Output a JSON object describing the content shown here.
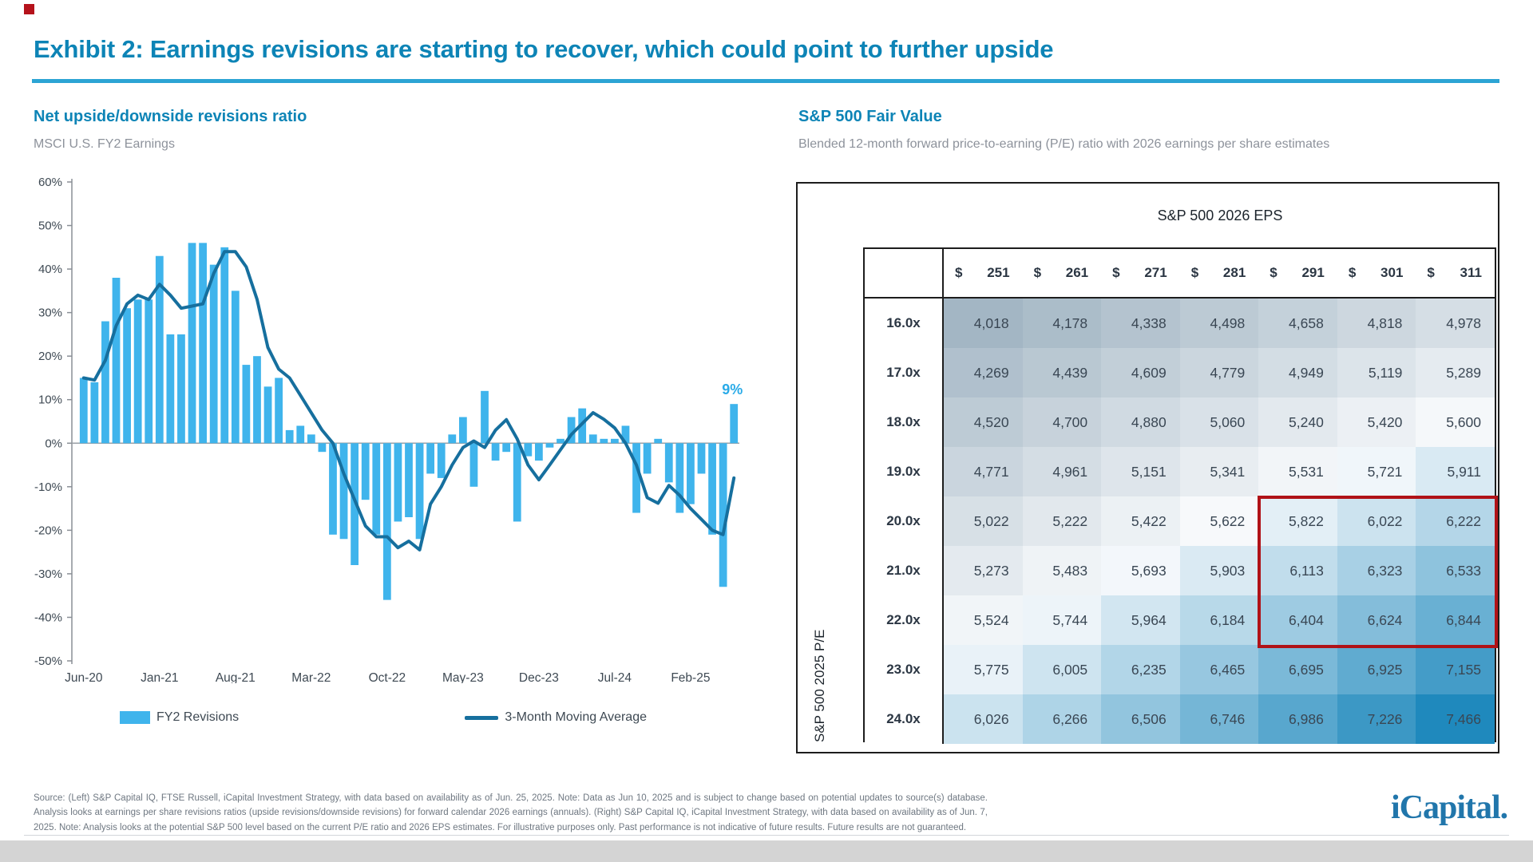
{
  "colors": {
    "title_blue": "#0d84b6",
    "rule_blue": "#2ca4d4",
    "bar_blue": "#3fb4ec",
    "ma_line_blue": "#166f9e",
    "annotation_blue": "#2aabe8",
    "axis_gray": "#8a8f96",
    "zero_line_gray": "#9aa0a6",
    "tick_text": "#3e4953",
    "subtitle_gray": "#8d929b",
    "footer_gray": "#6e7781",
    "highlight_red": "#b01217",
    "logo_blue": "#2176ab",
    "corner_mark_red": "#b5121b"
  },
  "header": {
    "exhibit_title": "Exhibit 2: Earnings revisions are starting to recover, which could point to further upside"
  },
  "left_panel": {
    "title": "Net upside/downside revisions ratio",
    "subtitle": "MSCI U.S. FY2 Earnings",
    "annotation_label": "9%",
    "legend": [
      {
        "label": "FY2 Revisions",
        "swatch": "bar"
      },
      {
        "label": "3-Month Moving Average",
        "swatch": "line"
      }
    ]
  },
  "chart_data": {
    "type": "bar",
    "title": "Net upside/downside revisions ratio",
    "subtitle": "MSCI U.S. FY2 Earnings",
    "ylim": [
      -50,
      60
    ],
    "ytick_step": 10,
    "ytick_suffix": "%",
    "grid": "zero-line-only",
    "legend_position": "bottom",
    "categories": [
      "Jun-20",
      "Jul-20",
      "Aug-20",
      "Sep-20",
      "Oct-20",
      "Nov-20",
      "Dec-20",
      "Jan-21",
      "Feb-21",
      "Mar-21",
      "Apr-21",
      "May-21",
      "Jun-21",
      "Jul-21",
      "Aug-21",
      "Sep-21",
      "Oct-21",
      "Nov-21",
      "Dec-21",
      "Jan-22",
      "Feb-22",
      "Mar-22",
      "Apr-22",
      "May-22",
      "Jun-22",
      "Jul-22",
      "Aug-22",
      "Sep-22",
      "Oct-22",
      "Nov-22",
      "Dec-22",
      "Jan-23",
      "Feb-23",
      "Mar-23",
      "Apr-23",
      "May-23",
      "Jun-23",
      "Jul-23",
      "Aug-23",
      "Sep-23",
      "Oct-23",
      "Nov-23",
      "Dec-23",
      "Jan-24",
      "Feb-24",
      "Mar-24",
      "Apr-24",
      "May-24",
      "Jun-24",
      "Jul-24",
      "Aug-24",
      "Sep-24",
      "Oct-24",
      "Nov-24",
      "Dec-24",
      "Jan-25",
      "Feb-25",
      "Mar-25",
      "Apr-25",
      "May-25",
      "Jun-25"
    ],
    "xtick_indices": [
      0,
      7,
      14,
      21,
      28,
      35,
      42,
      49,
      56
    ],
    "xtick_labels": [
      "Jun-20",
      "Jan-21",
      "Aug-21",
      "Mar-22",
      "Oct-22",
      "May-23",
      "Dec-23",
      "Jul-24",
      "Feb-25"
    ],
    "series": [
      {
        "name": "FY2 Revisions",
        "type": "bar",
        "values": [
          15,
          14,
          28,
          38,
          31,
          33,
          33,
          43,
          25,
          25,
          46,
          46,
          41,
          45,
          35,
          18,
          20,
          13,
          15,
          3,
          4,
          2,
          -2,
          -21,
          -22,
          -28,
          -13,
          -21,
          -36,
          -18,
          -17,
          -22,
          -7,
          -8,
          2,
          6,
          -10,
          12,
          -4,
          -2,
          -18,
          -3,
          -4,
          -1,
          1,
          6,
          8,
          2,
          1,
          1,
          4,
          -16,
          -7,
          1,
          -9,
          -16,
          -14,
          -7,
          -21,
          -33,
          9
        ]
      },
      {
        "name": "3-Month Moving Average",
        "type": "line",
        "values": [
          15,
          14.5,
          19,
          27,
          32,
          34,
          33,
          36.5,
          34,
          31,
          31.5,
          32,
          39,
          44,
          44,
          40.5,
          33,
          22,
          17,
          15,
          11,
          7,
          3,
          0,
          -7,
          -13,
          -19,
          -21.5,
          -21.5,
          -24,
          -22.5,
          -24.5,
          -14,
          -10,
          -5,
          -1,
          0.5,
          -1,
          3,
          5.4,
          1,
          -5,
          -8.4,
          -5,
          -1.5,
          2,
          4.5,
          7,
          5.5,
          3.5,
          0,
          -5,
          -12.5,
          -13.8,
          -9.7,
          -12,
          -15,
          -17.5,
          -20,
          -21,
          -8
        ]
      }
    ],
    "annotation": {
      "index": 60,
      "text": "9%"
    }
  },
  "right_panel": {
    "title": "S&P 500 Fair Value",
    "subtitle": "Blended 12-month forward price-to-earning (P/E) ratio with 2026 earnings per share estimates",
    "table": {
      "column_axis_title": "S&P 500 2026 EPS",
      "row_axis_title": "S&P 500 2025 P/E",
      "currency_prefix": "$",
      "col_headers": [
        "251",
        "261",
        "271",
        "281",
        "291",
        "301",
        "311"
      ],
      "row_labels": [
        "16.0x",
        "17.0x",
        "18.0x",
        "19.0x",
        "20.0x",
        "21.0x",
        "22.0x",
        "23.0x",
        "24.0x"
      ],
      "values": [
        [
          4018,
          4178,
          4338,
          4498,
          4658,
          4818,
          4978
        ],
        [
          4269,
          4439,
          4609,
          4779,
          4949,
          5119,
          5289
        ],
        [
          4520,
          4700,
          4880,
          5060,
          5240,
          5420,
          5600
        ],
        [
          4771,
          4961,
          5151,
          5341,
          5531,
          5721,
          5911
        ],
        [
          5022,
          5222,
          5422,
          5622,
          5822,
          6022,
          6222
        ],
        [
          5273,
          5483,
          5693,
          5903,
          6113,
          6323,
          6533
        ],
        [
          5524,
          5744,
          5964,
          6184,
          6404,
          6624,
          6844
        ],
        [
          5775,
          6005,
          6235,
          6465,
          6695,
          6925,
          7155
        ],
        [
          6026,
          6266,
          6506,
          6746,
          6986,
          7226,
          7466
        ]
      ],
      "highlight_region": {
        "row_start": 4,
        "row_end": 6,
        "col_start": 4,
        "col_end": 6
      },
      "heatmap": {
        "low_value": 4018,
        "mid_value": 5650,
        "high_value": 7466,
        "low_color": "#a3b6c4",
        "mid_color": "#f8fafc",
        "high_color": "#1f89bd"
      }
    }
  },
  "footer": {
    "source_text": "Source: (Left) S&P Capital IQ, FTSE Russell, iCapital Investment Strategy, with data based on availability as of Jun. 25, 2025. Note: Data as Jun 10, 2025 and is subject to change based on potential updates to source(s) database. Analysis looks at earnings per share revisions ratios (upside revisions/downside revisions) for forward calendar 2026 earnings (annuals). (Right) S&P Capital IQ, iCapital Investment Strategy, with data based on availability as of Jun. 7, 2025. Note: Analysis looks at the potential S&P 500 level based on the current P/E ratio and 2026 EPS estimates. For illustrative purposes only. Past performance is not indicative of future results. Future results are not guaranteed.",
    "logo_text": "iCapital."
  }
}
